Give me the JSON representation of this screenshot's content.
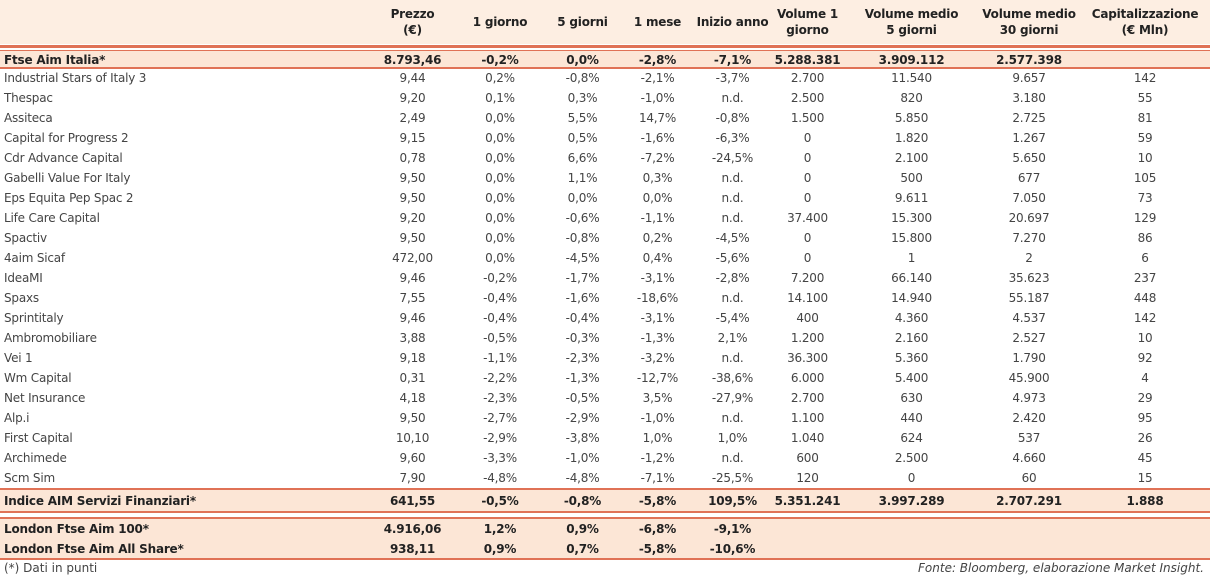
{
  "headers": [
    "",
    "Prezzo\n(€)",
    "1 giorno",
    "5 giorni",
    "1 mese",
    "Inizio anno",
    "Volume 1\ngiorno",
    "Volume medio\n5 giorni",
    "Volume medio\n30 giorni",
    "Capitalizzazione\n(€ Mln)"
  ],
  "index_top": [
    "Ftse Aim Italia*",
    "8.793,46",
    "-0,2%",
    "0,0%",
    "-2,8%",
    "-7,1%",
    "5.288.381",
    "3.909.112",
    "2.577.398",
    ""
  ],
  "rows": [
    [
      "Industrial Stars of Italy 3",
      "9,44",
      "0,2%",
      "-0,8%",
      "-2,1%",
      "-3,7%",
      "2.700",
      "11.540",
      "9.657",
      "142"
    ],
    [
      "Thespac",
      "9,20",
      "0,1%",
      "0,3%",
      "-1,0%",
      "n.d.",
      "2.500",
      "820",
      "3.180",
      "55"
    ],
    [
      "Assiteca",
      "2,49",
      "0,0%",
      "5,5%",
      "14,7%",
      "-0,8%",
      "1.500",
      "5.850",
      "2.725",
      "81"
    ],
    [
      "Capital for Progress 2",
      "9,15",
      "0,0%",
      "0,5%",
      "-1,6%",
      "-6,3%",
      "0",
      "1.820",
      "1.267",
      "59"
    ],
    [
      "Cdr Advance Capital",
      "0,78",
      "0,0%",
      "6,6%",
      "-7,2%",
      "-24,5%",
      "0",
      "2.100",
      "5.650",
      "10"
    ],
    [
      "Gabelli Value For Italy",
      "9,50",
      "0,0%",
      "1,1%",
      "0,3%",
      "n.d.",
      "0",
      "500",
      "677",
      "105"
    ],
    [
      "Eps Equita Pep Spac 2",
      "9,50",
      "0,0%",
      "0,0%",
      "0,0%",
      "n.d.",
      "0",
      "9.611",
      "7.050",
      "73"
    ],
    [
      "Life Care Capital",
      "9,20",
      "0,0%",
      "-0,6%",
      "-1,1%",
      "n.d.",
      "37.400",
      "15.300",
      "20.697",
      "129"
    ],
    [
      "Spactiv",
      "9,50",
      "0,0%",
      "-0,8%",
      "0,2%",
      "-4,5%",
      "0",
      "15.800",
      "7.270",
      "86"
    ],
    [
      "4aim Sicaf",
      "472,00",
      "0,0%",
      "-4,5%",
      "0,4%",
      "-5,6%",
      "0",
      "1",
      "2",
      "6"
    ],
    [
      "IdeaMI",
      "9,46",
      "-0,2%",
      "-1,7%",
      "-3,1%",
      "-2,8%",
      "7.200",
      "66.140",
      "35.623",
      "237"
    ],
    [
      "Spaxs",
      "7,55",
      "-0,4%",
      "-1,6%",
      "-18,6%",
      "n.d.",
      "14.100",
      "14.940",
      "55.187",
      "448"
    ],
    [
      "Sprintitaly",
      "9,46",
      "-0,4%",
      "-0,4%",
      "-3,1%",
      "-5,4%",
      "400",
      "4.360",
      "4.537",
      "142"
    ],
    [
      "Ambromobiliare",
      "3,88",
      "-0,5%",
      "-0,3%",
      "-1,3%",
      "2,1%",
      "1.200",
      "2.160",
      "2.527",
      "10"
    ],
    [
      "Vei 1",
      "9,18",
      "-1,1%",
      "-2,3%",
      "-3,2%",
      "n.d.",
      "36.300",
      "5.360",
      "1.790",
      "92"
    ],
    [
      "Wm Capital",
      "0,31",
      "-2,2%",
      "-1,3%",
      "-12,7%",
      "-38,6%",
      "6.000",
      "5.400",
      "45.900",
      "4"
    ],
    [
      "Net Insurance",
      "4,18",
      "-2,3%",
      "-0,5%",
      "3,5%",
      "-27,9%",
      "2.700",
      "630",
      "4.973",
      "29"
    ],
    [
      "Alp.i",
      "9,50",
      "-2,7%",
      "-2,9%",
      "-1,0%",
      "n.d.",
      "1.100",
      "440",
      "2.420",
      "95"
    ],
    [
      "First Capital",
      "10,10",
      "-2,9%",
      "-3,8%",
      "1,0%",
      "1,0%",
      "1.040",
      "624",
      "537",
      "26"
    ],
    [
      "Archimede",
      "9,60",
      "-3,3%",
      "-1,0%",
      "-1,2%",
      "n.d.",
      "600",
      "2.500",
      "4.660",
      "45"
    ],
    [
      "Scm Sim",
      "7,90",
      "-4,8%",
      "-4,8%",
      "-7,1%",
      "-25,5%",
      "120",
      "0",
      "60",
      "15"
    ]
  ],
  "index_sector": [
    "Indice AIM Servizi Finanziari*",
    "641,55",
    "-0,5%",
    "-0,8%",
    "-5,8%",
    "109,5%",
    "5.351.241",
    "3.997.289",
    "2.707.291",
    "1.888"
  ],
  "london": [
    [
      "London Ftse Aim 100*",
      "4.916,06",
      "1,2%",
      "0,9%",
      "-6,8%",
      "-9,1%",
      "",
      "",
      "",
      ""
    ],
    [
      "London Ftse Aim All Share*",
      "938,11",
      "0,9%",
      "0,7%",
      "-5,8%",
      "-10,6%",
      "",
      "",
      "",
      ""
    ]
  ],
  "footer": {
    "note": "(*) Dati in punti",
    "source": "Fonte: Bloomberg, elaborazione Market Insight."
  },
  "colors": {
    "accent": "#e07256",
    "band": "#fce6d6",
    "header": "#fdeee2"
  }
}
